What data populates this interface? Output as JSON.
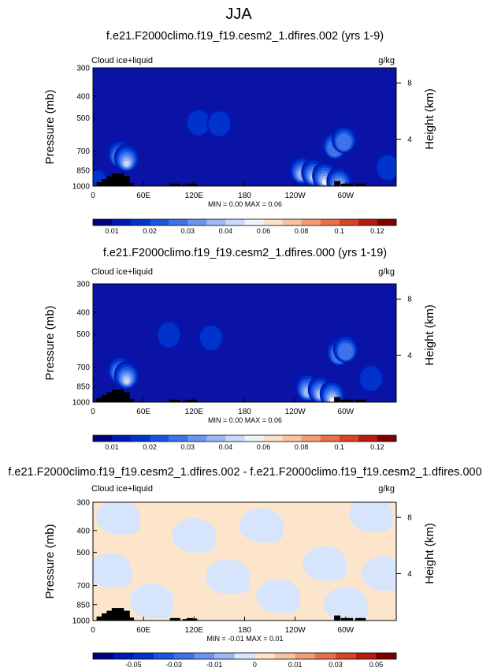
{
  "figure_title": "JJA",
  "chart_data": [
    {
      "type": "heatmap",
      "title": "f.e21.F2000climo.f19_f19.cesm2_1.dfires.002 (yrs 1-9)",
      "left_label": "Cloud ice+liquid",
      "right_label": "g/kg",
      "ylabel": "Pressure (mb)",
      "ylabel_right": "Height (km)",
      "x_ticks": [
        "0",
        "60E",
        "120E",
        "180",
        "120W",
        "60W"
      ],
      "y_ticks": [
        "300",
        "400",
        "500",
        "700",
        "850",
        "1000"
      ],
      "y_ticks_right": [
        "8",
        "4"
      ],
      "min_max_text": "MIN =   0.00  MAX =   0.06",
      "colorbar_ticks": [
        "0.01",
        "0.02",
        "0.03",
        "0.04",
        "0.06",
        "0.08",
        "0.1",
        "0.12"
      ],
      "colorbar_colors": [
        "#000080",
        "#0019b3",
        "#0033cc",
        "#1a55e0",
        "#3d72e8",
        "#6a94ef",
        "#9cb8f5",
        "#c9d9fa",
        "#f0f3fa",
        "#fbe1c9",
        "#f7c3a0",
        "#f29d74",
        "#e9704a",
        "#d84525",
        "#b81c10",
        "#800000"
      ],
      "background_color": "#0a13a6",
      "features": [
        {
          "type": "cloud",
          "lon": 32,
          "p": 720,
          "level": 4
        },
        {
          "type": "cloud",
          "lon": 40,
          "p": 750,
          "level": 6
        },
        {
          "type": "cloud",
          "lon": 3,
          "p": 950,
          "level": 1
        },
        {
          "type": "cloud",
          "lon": 125,
          "p": 520,
          "level": 1
        },
        {
          "type": "cloud",
          "lon": 150,
          "p": 525,
          "level": 1
        },
        {
          "type": "cloud",
          "lon": 248,
          "p": 850,
          "level": 5
        },
        {
          "type": "cloud",
          "lon": 262,
          "p": 870,
          "level": 6
        },
        {
          "type": "cloud",
          "lon": 275,
          "p": 900,
          "level": 7
        },
        {
          "type": "cloud",
          "lon": 287,
          "p": 660,
          "level": 3
        },
        {
          "type": "cloud",
          "lon": 298,
          "p": 620,
          "level": 3
        },
        {
          "type": "cloud",
          "lon": 292,
          "p": 950,
          "level": 7
        },
        {
          "type": "cloud",
          "lon": 350,
          "p": 820,
          "level": 1
        }
      ]
    },
    {
      "type": "heatmap",
      "title": "f.e21.F2000climo.f19_f19.cesm2_1.dfires.000 (yrs 1-19)",
      "left_label": "Cloud ice+liquid",
      "right_label": "g/kg",
      "ylabel": "Pressure (mb)",
      "ylabel_right": "Height (km)",
      "x_ticks": [
        "0",
        "60E",
        "120E",
        "180",
        "120W",
        "60W"
      ],
      "y_ticks": [
        "300",
        "400",
        "500",
        "700",
        "850",
        "1000"
      ],
      "y_ticks_right": [
        "8",
        "4"
      ],
      "min_max_text": "MIN =   0.00  MAX =   0.06",
      "colorbar_ticks": [
        "0.01",
        "0.02",
        "0.03",
        "0.04",
        "0.06",
        "0.08",
        "0.1",
        "0.12"
      ],
      "colorbar_colors": [
        "#000080",
        "#0019b3",
        "#0033cc",
        "#1a55e0",
        "#3d72e8",
        "#6a94ef",
        "#9cb8f5",
        "#c9d9fa",
        "#f0f3fa",
        "#fbe1c9",
        "#f7c3a0",
        "#f29d74",
        "#e9704a",
        "#d84525",
        "#b81c10",
        "#800000"
      ],
      "background_color": "#0a13a6",
      "features": [
        {
          "type": "cloud",
          "lon": 32,
          "p": 720,
          "level": 4
        },
        {
          "type": "cloud",
          "lon": 40,
          "p": 760,
          "level": 6
        },
        {
          "type": "cloud",
          "lon": 90,
          "p": 500,
          "level": 1
        },
        {
          "type": "cloud",
          "lon": 140,
          "p": 515,
          "level": 1
        },
        {
          "type": "cloud",
          "lon": 255,
          "p": 860,
          "level": 5
        },
        {
          "type": "cloud",
          "lon": 270,
          "p": 880,
          "level": 6
        },
        {
          "type": "cloud",
          "lon": 284,
          "p": 920,
          "level": 7
        },
        {
          "type": "cloud",
          "lon": 292,
          "p": 600,
          "level": 3
        },
        {
          "type": "cloud",
          "lon": 300,
          "p": 580,
          "level": 3
        },
        {
          "type": "cloud",
          "lon": 330,
          "p": 780,
          "level": 1
        }
      ]
    },
    {
      "type": "heatmap",
      "title": "f.e21.F2000climo.f19_f19.cesm2_1.dfires.002 - f.e21.F2000climo.f19_f19.cesm2_1.dfires.000",
      "left_label": "Cloud ice+liquid",
      "right_label": "g/kg",
      "ylabel": "Pressure (mb)",
      "ylabel_right": "Height (km)",
      "x_ticks": [
        "0",
        "60E",
        "120E",
        "180",
        "120W",
        "60W"
      ],
      "y_ticks": [
        "300",
        "400",
        "500",
        "700",
        "850",
        "1000"
      ],
      "y_ticks_right": [
        "8",
        "4"
      ],
      "min_max_text": "MIN =  -0.01  MAX =   0.01",
      "colorbar_ticks": [
        "-0.05",
        "-0.03",
        "-0.01",
        "0",
        "0.01",
        "0.03",
        "0.05"
      ],
      "colorbar_colors": [
        "#000080",
        "#0019b3",
        "#0033cc",
        "#1a55e0",
        "#3d72e8",
        "#6a94ef",
        "#9cb8f5",
        "#d6e5fb",
        "#fde5cc",
        "#f7c3a0",
        "#f29d74",
        "#e9704a",
        "#d84525",
        "#b81c10",
        "#800000"
      ],
      "background_color": "#fde5cc",
      "features": [
        {
          "type": "anomaly",
          "lon": 30,
          "p": 350,
          "level": -1
        },
        {
          "type": "anomaly",
          "lon": 20,
          "p": 600,
          "level": -1
        },
        {
          "type": "anomaly",
          "lon": 70,
          "p": 820,
          "level": -1
        },
        {
          "type": "anomaly",
          "lon": 120,
          "p": 420,
          "level": -1
        },
        {
          "type": "anomaly",
          "lon": 160,
          "p": 640,
          "level": -1
        },
        {
          "type": "anomaly",
          "lon": 200,
          "p": 380,
          "level": -1
        },
        {
          "type": "anomaly",
          "lon": 220,
          "p": 780,
          "level": -1
        },
        {
          "type": "anomaly",
          "lon": 275,
          "p": 560,
          "level": -1
        },
        {
          "type": "anomaly",
          "lon": 300,
          "p": 850,
          "level": -1
        },
        {
          "type": "anomaly",
          "lon": 330,
          "p": 340,
          "level": -1
        },
        {
          "type": "anomaly",
          "lon": 345,
          "p": 620,
          "level": -1
        }
      ]
    }
  ]
}
